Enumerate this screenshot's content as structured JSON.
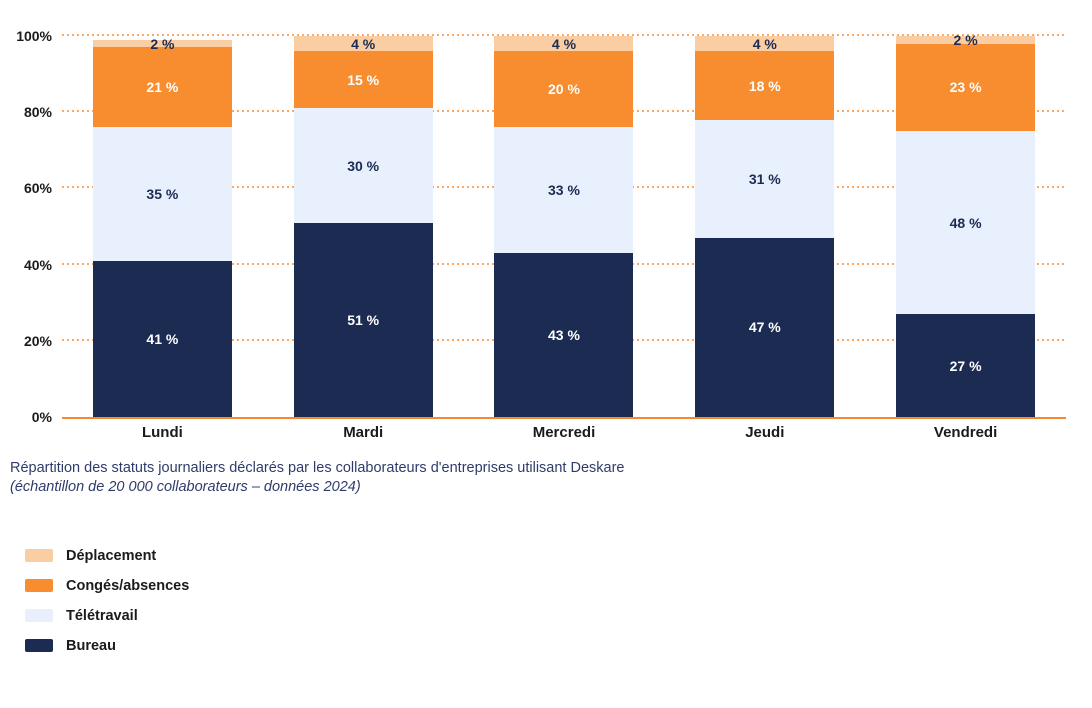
{
  "colors": {
    "bureau": "#1C2B51",
    "teletravail": "#E7F0FC",
    "conges": "#F78D2E",
    "deplacement": "#FACDA3",
    "gridline": "#F9A867",
    "baseline": "#F28A33",
    "axis_text": "#1B1B1B",
    "caption_text": "#2F3C6B",
    "label_light": "#FFFFFF",
    "label_dark": "#1C2B51"
  },
  "chart_data": {
    "type": "bar",
    "stacked": true,
    "categories": [
      "Lundi",
      "Mardi",
      "Mercredi",
      "Jeudi",
      "Vendredi"
    ],
    "series": [
      {
        "name": "Bureau",
        "color_key": "bureau",
        "label_color": "light",
        "values": [
          41,
          51,
          43,
          47,
          27
        ]
      },
      {
        "name": "Télétravail",
        "color_key": "teletravail",
        "label_color": "dark",
        "values": [
          35,
          30,
          33,
          31,
          48
        ]
      },
      {
        "name": "Congés/absences",
        "color_key": "conges",
        "label_color": "light",
        "values": [
          21,
          15,
          20,
          18,
          23
        ]
      },
      {
        "name": "Déplacement",
        "color_key": "deplacement",
        "label_color": "dark",
        "values": [
          2,
          4,
          4,
          4,
          2
        ]
      }
    ],
    "value_suffix": " %",
    "y_ticks": [
      {
        "label": "0%",
        "value": 0
      },
      {
        "label": "20%",
        "value": 20
      },
      {
        "label": "40%",
        "value": 40
      },
      {
        "label": "60%",
        "value": 60
      },
      {
        "label": "80%",
        "value": 80
      },
      {
        "label": "100%",
        "value": 100
      }
    ],
    "ylim": [
      0,
      100
    ],
    "grid": "dotted-horizontal-orange",
    "legend_position": "bottom-left",
    "title": ""
  },
  "caption": {
    "line1": "Répartition des statuts journaliers déclarés par les collaborateurs d'entreprises utilisant Deskare",
    "line2": "(échantillon de 20 000 collaborateurs – données 2024)"
  },
  "legend": {
    "items": [
      {
        "label": "Déplacement",
        "color_key": "deplacement"
      },
      {
        "label": "Congés/absences",
        "color_key": "conges"
      },
      {
        "label": "Télétravail",
        "color_key": "teletravail"
      },
      {
        "label": "Bureau",
        "color_key": "bureau"
      }
    ]
  }
}
